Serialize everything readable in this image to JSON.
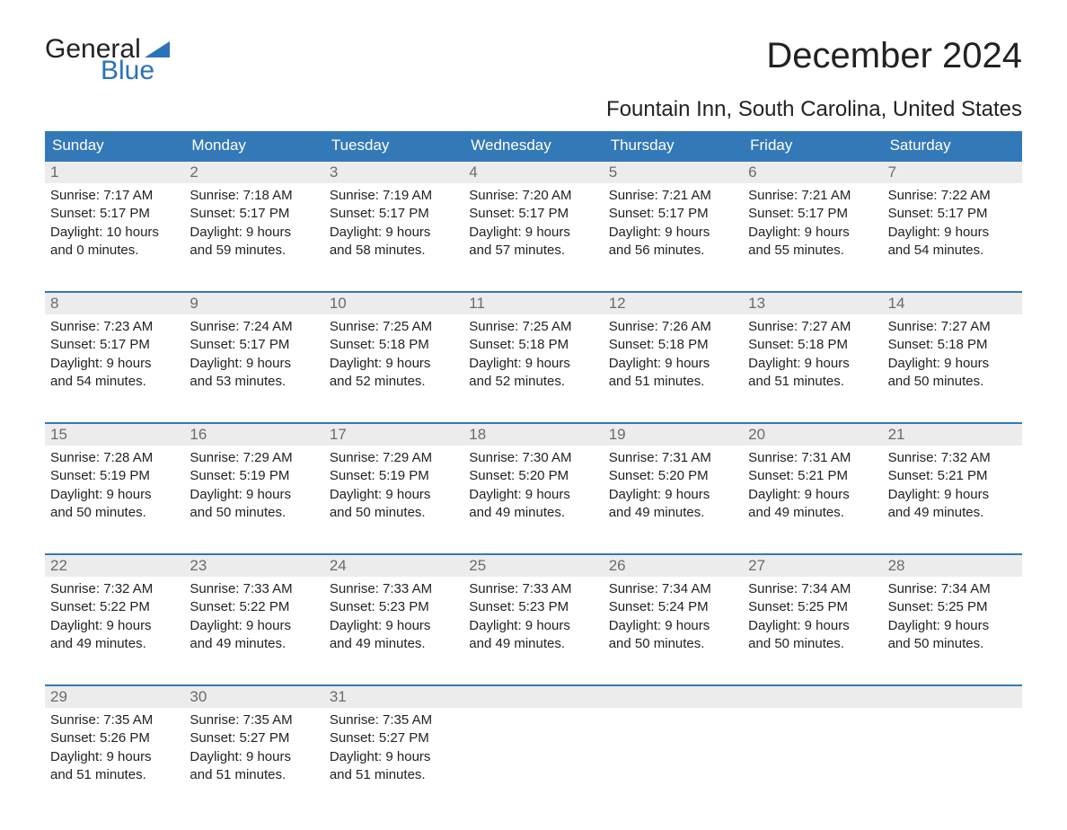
{
  "brand": {
    "name_part1": "General",
    "name_part2": "Blue",
    "text_color": "#222222",
    "accent_color": "#2a73b8"
  },
  "title": "December 2024",
  "location": "Fountain Inn, South Carolina, United States",
  "colors": {
    "header_bg": "#3379b7",
    "header_text": "#ffffff",
    "daynum_bg": "#ececec",
    "daynum_text": "#6b6b6b",
    "body_text": "#222222",
    "week_border": "#3379b7",
    "page_bg": "#ffffff"
  },
  "typography": {
    "title_fontsize": 40,
    "location_fontsize": 24,
    "dow_fontsize": 17,
    "daynum_fontsize": 17,
    "cell_fontsize": 15
  },
  "days_of_week": [
    "Sunday",
    "Monday",
    "Tuesday",
    "Wednesday",
    "Thursday",
    "Friday",
    "Saturday"
  ],
  "weeks": [
    [
      {
        "n": "1",
        "sunrise": "Sunrise: 7:17 AM",
        "sunset": "Sunset: 5:17 PM",
        "d1": "Daylight: 10 hours",
        "d2": "and 0 minutes."
      },
      {
        "n": "2",
        "sunrise": "Sunrise: 7:18 AM",
        "sunset": "Sunset: 5:17 PM",
        "d1": "Daylight: 9 hours",
        "d2": "and 59 minutes."
      },
      {
        "n": "3",
        "sunrise": "Sunrise: 7:19 AM",
        "sunset": "Sunset: 5:17 PM",
        "d1": "Daylight: 9 hours",
        "d2": "and 58 minutes."
      },
      {
        "n": "4",
        "sunrise": "Sunrise: 7:20 AM",
        "sunset": "Sunset: 5:17 PM",
        "d1": "Daylight: 9 hours",
        "d2": "and 57 minutes."
      },
      {
        "n": "5",
        "sunrise": "Sunrise: 7:21 AM",
        "sunset": "Sunset: 5:17 PM",
        "d1": "Daylight: 9 hours",
        "d2": "and 56 minutes."
      },
      {
        "n": "6",
        "sunrise": "Sunrise: 7:21 AM",
        "sunset": "Sunset: 5:17 PM",
        "d1": "Daylight: 9 hours",
        "d2": "and 55 minutes."
      },
      {
        "n": "7",
        "sunrise": "Sunrise: 7:22 AM",
        "sunset": "Sunset: 5:17 PM",
        "d1": "Daylight: 9 hours",
        "d2": "and 54 minutes."
      }
    ],
    [
      {
        "n": "8",
        "sunrise": "Sunrise: 7:23 AM",
        "sunset": "Sunset: 5:17 PM",
        "d1": "Daylight: 9 hours",
        "d2": "and 54 minutes."
      },
      {
        "n": "9",
        "sunrise": "Sunrise: 7:24 AM",
        "sunset": "Sunset: 5:17 PM",
        "d1": "Daylight: 9 hours",
        "d2": "and 53 minutes."
      },
      {
        "n": "10",
        "sunrise": "Sunrise: 7:25 AM",
        "sunset": "Sunset: 5:18 PM",
        "d1": "Daylight: 9 hours",
        "d2": "and 52 minutes."
      },
      {
        "n": "11",
        "sunrise": "Sunrise: 7:25 AM",
        "sunset": "Sunset: 5:18 PM",
        "d1": "Daylight: 9 hours",
        "d2": "and 52 minutes."
      },
      {
        "n": "12",
        "sunrise": "Sunrise: 7:26 AM",
        "sunset": "Sunset: 5:18 PM",
        "d1": "Daylight: 9 hours",
        "d2": "and 51 minutes."
      },
      {
        "n": "13",
        "sunrise": "Sunrise: 7:27 AM",
        "sunset": "Sunset: 5:18 PM",
        "d1": "Daylight: 9 hours",
        "d2": "and 51 minutes."
      },
      {
        "n": "14",
        "sunrise": "Sunrise: 7:27 AM",
        "sunset": "Sunset: 5:18 PM",
        "d1": "Daylight: 9 hours",
        "d2": "and 50 minutes."
      }
    ],
    [
      {
        "n": "15",
        "sunrise": "Sunrise: 7:28 AM",
        "sunset": "Sunset: 5:19 PM",
        "d1": "Daylight: 9 hours",
        "d2": "and 50 minutes."
      },
      {
        "n": "16",
        "sunrise": "Sunrise: 7:29 AM",
        "sunset": "Sunset: 5:19 PM",
        "d1": "Daylight: 9 hours",
        "d2": "and 50 minutes."
      },
      {
        "n": "17",
        "sunrise": "Sunrise: 7:29 AM",
        "sunset": "Sunset: 5:19 PM",
        "d1": "Daylight: 9 hours",
        "d2": "and 50 minutes."
      },
      {
        "n": "18",
        "sunrise": "Sunrise: 7:30 AM",
        "sunset": "Sunset: 5:20 PM",
        "d1": "Daylight: 9 hours",
        "d2": "and 49 minutes."
      },
      {
        "n": "19",
        "sunrise": "Sunrise: 7:31 AM",
        "sunset": "Sunset: 5:20 PM",
        "d1": "Daylight: 9 hours",
        "d2": "and 49 minutes."
      },
      {
        "n": "20",
        "sunrise": "Sunrise: 7:31 AM",
        "sunset": "Sunset: 5:21 PM",
        "d1": "Daylight: 9 hours",
        "d2": "and 49 minutes."
      },
      {
        "n": "21",
        "sunrise": "Sunrise: 7:32 AM",
        "sunset": "Sunset: 5:21 PM",
        "d1": "Daylight: 9 hours",
        "d2": "and 49 minutes."
      }
    ],
    [
      {
        "n": "22",
        "sunrise": "Sunrise: 7:32 AM",
        "sunset": "Sunset: 5:22 PM",
        "d1": "Daylight: 9 hours",
        "d2": "and 49 minutes."
      },
      {
        "n": "23",
        "sunrise": "Sunrise: 7:33 AM",
        "sunset": "Sunset: 5:22 PM",
        "d1": "Daylight: 9 hours",
        "d2": "and 49 minutes."
      },
      {
        "n": "24",
        "sunrise": "Sunrise: 7:33 AM",
        "sunset": "Sunset: 5:23 PM",
        "d1": "Daylight: 9 hours",
        "d2": "and 49 minutes."
      },
      {
        "n": "25",
        "sunrise": "Sunrise: 7:33 AM",
        "sunset": "Sunset: 5:23 PM",
        "d1": "Daylight: 9 hours",
        "d2": "and 49 minutes."
      },
      {
        "n": "26",
        "sunrise": "Sunrise: 7:34 AM",
        "sunset": "Sunset: 5:24 PM",
        "d1": "Daylight: 9 hours",
        "d2": "and 50 minutes."
      },
      {
        "n": "27",
        "sunrise": "Sunrise: 7:34 AM",
        "sunset": "Sunset: 5:25 PM",
        "d1": "Daylight: 9 hours",
        "d2": "and 50 minutes."
      },
      {
        "n": "28",
        "sunrise": "Sunrise: 7:34 AM",
        "sunset": "Sunset: 5:25 PM",
        "d1": "Daylight: 9 hours",
        "d2": "and 50 minutes."
      }
    ],
    [
      {
        "n": "29",
        "sunrise": "Sunrise: 7:35 AM",
        "sunset": "Sunset: 5:26 PM",
        "d1": "Daylight: 9 hours",
        "d2": "and 51 minutes."
      },
      {
        "n": "30",
        "sunrise": "Sunrise: 7:35 AM",
        "sunset": "Sunset: 5:27 PM",
        "d1": "Daylight: 9 hours",
        "d2": "and 51 minutes."
      },
      {
        "n": "31",
        "sunrise": "Sunrise: 7:35 AM",
        "sunset": "Sunset: 5:27 PM",
        "d1": "Daylight: 9 hours",
        "d2": "and 51 minutes."
      },
      null,
      null,
      null,
      null
    ]
  ]
}
